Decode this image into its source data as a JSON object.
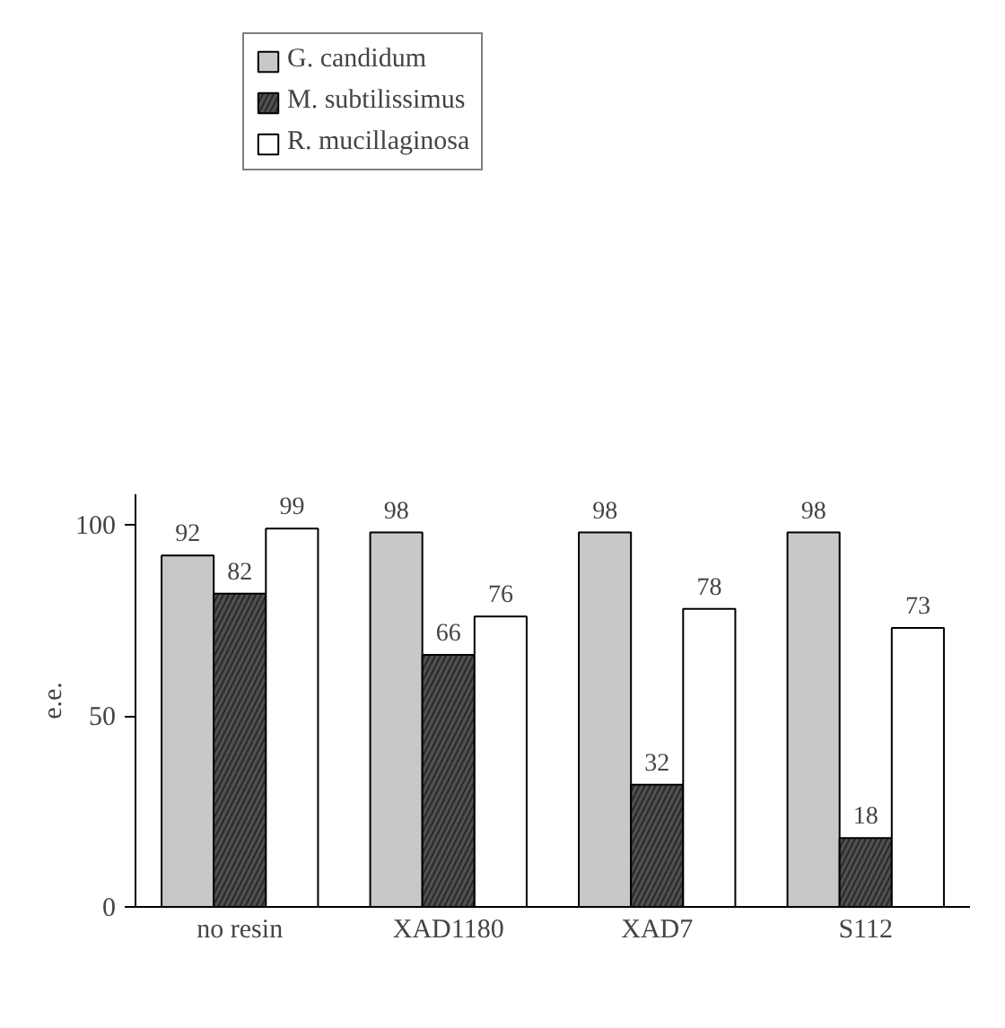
{
  "chart_data": {
    "type": "bar",
    "ylabel": "e.e.",
    "categories": [
      "no resin",
      "XAD1180",
      "XAD7",
      "S112"
    ],
    "series": [
      {
        "name": "G. candidum",
        "color": "#c8c8c8",
        "values": [
          92,
          98,
          98,
          98
        ]
      },
      {
        "name": "M. subtilissimus",
        "color": "#505050",
        "values": [
          82,
          66,
          32,
          18
        ]
      },
      {
        "name": "R. mucillaginosa",
        "color": "#ffffff",
        "values": [
          99,
          76,
          78,
          73
        ]
      }
    ],
    "ylim": [
      0,
      108
    ],
    "yticks": [
      0,
      50,
      100
    ],
    "grid": false,
    "legend": "top left",
    "data_labels": true
  }
}
